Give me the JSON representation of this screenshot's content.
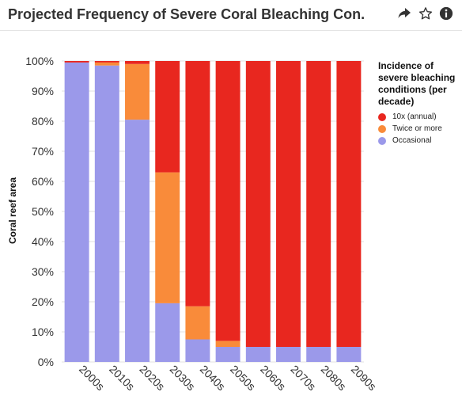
{
  "header": {
    "title": "Projected Frequency of Severe Coral Bleaching Con...",
    "share_icon": "share-arrow-icon",
    "favorite_icon": "star-outline-icon",
    "info_icon": "info-circle-icon"
  },
  "colors": {
    "annual": "#e8271f",
    "twice": "#f98b3a",
    "occasional": "#9b99ea",
    "grid": "#e0e0e0",
    "axis_text": "#333333"
  },
  "chart_data": {
    "type": "bar",
    "stacked": true,
    "title": "",
    "xlabel": "",
    "ylabel": "Coral reef area",
    "ylim": [
      0,
      100
    ],
    "y_ticks": [
      "0%",
      "10%",
      "20%",
      "30%",
      "40%",
      "50%",
      "60%",
      "70%",
      "80%",
      "90%",
      "100%"
    ],
    "grid": true,
    "legend_placement": "right",
    "legend_title": "Incidence of severe bleaching conditions (per decade)",
    "categories": [
      "2000s",
      "2010s",
      "2020s",
      "2030s",
      "2040s",
      "2050s",
      "2060s",
      "2070s",
      "2080s",
      "2090s"
    ],
    "series": [
      {
        "name": "Occasional",
        "color": "#9b99ea",
        "values": [
          99.5,
          98.5,
          80.5,
          19.5,
          7.5,
          5,
          5,
          5,
          5,
          5
        ]
      },
      {
        "name": "Twice or more",
        "color": "#f98b3a",
        "values": [
          0,
          1,
          18.5,
          43.5,
          11,
          2,
          0,
          0,
          0,
          0
        ]
      },
      {
        "name": "10x (annual)",
        "color": "#e8271f",
        "values": [
          0.5,
          0.5,
          1,
          37,
          81.5,
          93,
          95,
          95,
          95,
          95
        ]
      }
    ],
    "legend_order": [
      "10x (annual)",
      "Twice or more",
      "Occasional"
    ]
  }
}
